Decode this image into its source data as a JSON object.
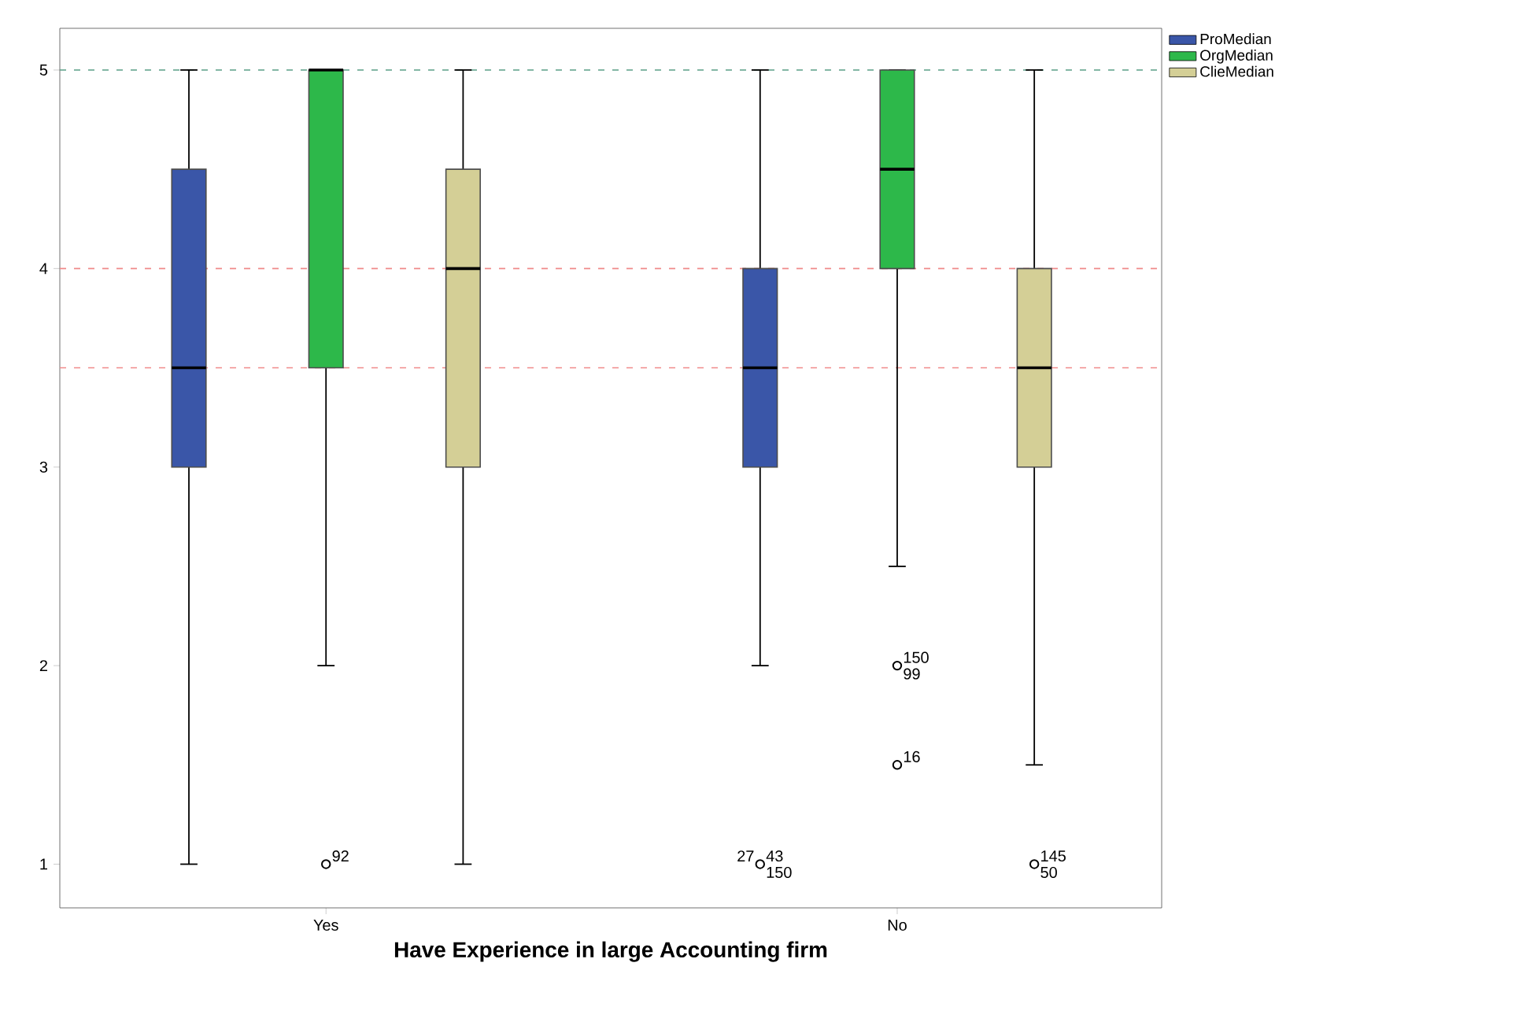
{
  "chart_data": {
    "type": "box",
    "xlabel": "Have Experience in large Accounting firm",
    "categories": [
      "Yes",
      "No"
    ],
    "series": [
      {
        "name": "ProMedian",
        "color": "#3a56a8",
        "boxes": [
          {
            "low": 1,
            "q1": 3,
            "median": 3.5,
            "q3": 4.5,
            "high": 5
          },
          {
            "low": 2,
            "q1": 3,
            "median": 3.5,
            "q3": 4,
            "high": 5,
            "outliers": [
              1
            ]
          }
        ]
      },
      {
        "name": "OrgMedian",
        "color": "#2db84a",
        "boxes": [
          {
            "low": 2,
            "q1": 3.5,
            "median": 5,
            "q3": 5,
            "high": 5,
            "outliers": [
              1
            ]
          },
          {
            "low": 2.5,
            "q1": 4,
            "median": 4.5,
            "q3": 5,
            "high": 5,
            "outliers": [
              2,
              1.5
            ]
          }
        ]
      },
      {
        "name": "ClieMedian",
        "color": "#d4cf96",
        "boxes": [
          {
            "low": 1,
            "q1": 3,
            "median": 4,
            "q3": 4.5,
            "high": 5
          },
          {
            "low": 1.5,
            "q1": 3,
            "median": 3.5,
            "q3": 4,
            "high": 5,
            "outliers": [
              1
            ]
          }
        ]
      }
    ],
    "ylim": [
      0.78,
      5.21
    ],
    "yticks": [
      1,
      2,
      3,
      4,
      5
    ],
    "ref_lines": [
      {
        "axis": "y",
        "value": 5,
        "color": "#5a9e86",
        "line_style": "dashed"
      },
      {
        "axis": "y",
        "value": 4,
        "color": "#f08a8a",
        "line_style": "dashed"
      },
      {
        "axis": "y",
        "value": 3.5,
        "color": "#f08a8a",
        "line_style": "dashed"
      }
    ],
    "annotations": [
      "92",
      "43",
      "150",
      "27",
      "150",
      "99",
      "16",
      "145",
      "50"
    ],
    "legend": "top right"
  }
}
